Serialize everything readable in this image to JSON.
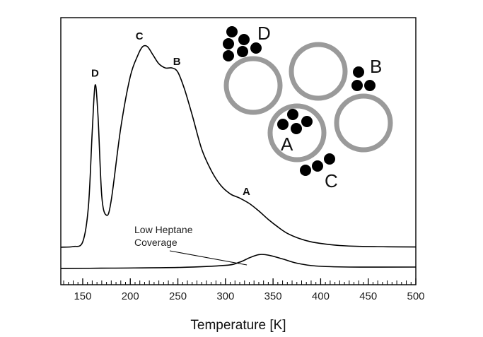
{
  "chart_data": {
    "type": "line",
    "title": "",
    "xlabel": "Temperature [K]",
    "ylabel": "",
    "xlim": [
      127,
      500
    ],
    "x_ticks": [
      150,
      200,
      250,
      300,
      350,
      400,
      450,
      500
    ],
    "grid": false,
    "legend": "none",
    "series": [
      {
        "points": [
          [
            127,
            0.06
          ],
          [
            140,
            0.063
          ],
          [
            150,
            0.085
          ],
          [
            156,
            0.25
          ],
          [
            160,
            0.6
          ],
          [
            163,
            0.82
          ],
          [
            166,
            0.68
          ],
          [
            170,
            0.3
          ],
          [
            175,
            0.21
          ],
          [
            180,
            0.28
          ],
          [
            190,
            0.62
          ],
          [
            200,
            0.86
          ],
          [
            208,
            0.96
          ],
          [
            213,
            1.0
          ],
          [
            218,
            1.0
          ],
          [
            224,
            0.96
          ],
          [
            230,
            0.92
          ],
          [
            237,
            0.9
          ],
          [
            244,
            0.9
          ],
          [
            250,
            0.88
          ],
          [
            257,
            0.8
          ],
          [
            265,
            0.68
          ],
          [
            275,
            0.52
          ],
          [
            285,
            0.42
          ],
          [
            295,
            0.35
          ],
          [
            305,
            0.31
          ],
          [
            315,
            0.29
          ],
          [
            325,
            0.265
          ],
          [
            335,
            0.23
          ],
          [
            345,
            0.19
          ],
          [
            355,
            0.155
          ],
          [
            365,
            0.125
          ],
          [
            378,
            0.1
          ],
          [
            390,
            0.085
          ],
          [
            405,
            0.075
          ],
          [
            420,
            0.068
          ],
          [
            440,
            0.064
          ],
          [
            470,
            0.062
          ],
          [
            500,
            0.061
          ]
        ]
      },
      {
        "points": [
          [
            127,
            -0.04
          ],
          [
            180,
            -0.038
          ],
          [
            250,
            -0.035
          ],
          [
            300,
            -0.025
          ],
          [
            315,
            -0.01
          ],
          [
            325,
            0.01
          ],
          [
            335,
            0.025
          ],
          [
            345,
            0.023
          ],
          [
            360,
            0.005
          ],
          [
            375,
            -0.015
          ],
          [
            395,
            -0.028
          ],
          [
            430,
            -0.033
          ],
          [
            500,
            -0.033
          ]
        ]
      }
    ],
    "annotations": [
      {
        "text": "D",
        "x": 163,
        "y": 0.82
      },
      {
        "text": "C",
        "x": 220,
        "y": 1.0
      },
      {
        "text": "B",
        "x": 249,
        "y": 0.88
      },
      {
        "text": "A",
        "x": 325,
        "y": 0.265
      },
      {
        "text": "Low Heptane\nCoverage",
        "target_x": 318,
        "target_y": 0.0
      }
    ]
  },
  "illustration_labels": {
    "d": "D",
    "b": "B",
    "a": "A",
    "c": "C"
  }
}
